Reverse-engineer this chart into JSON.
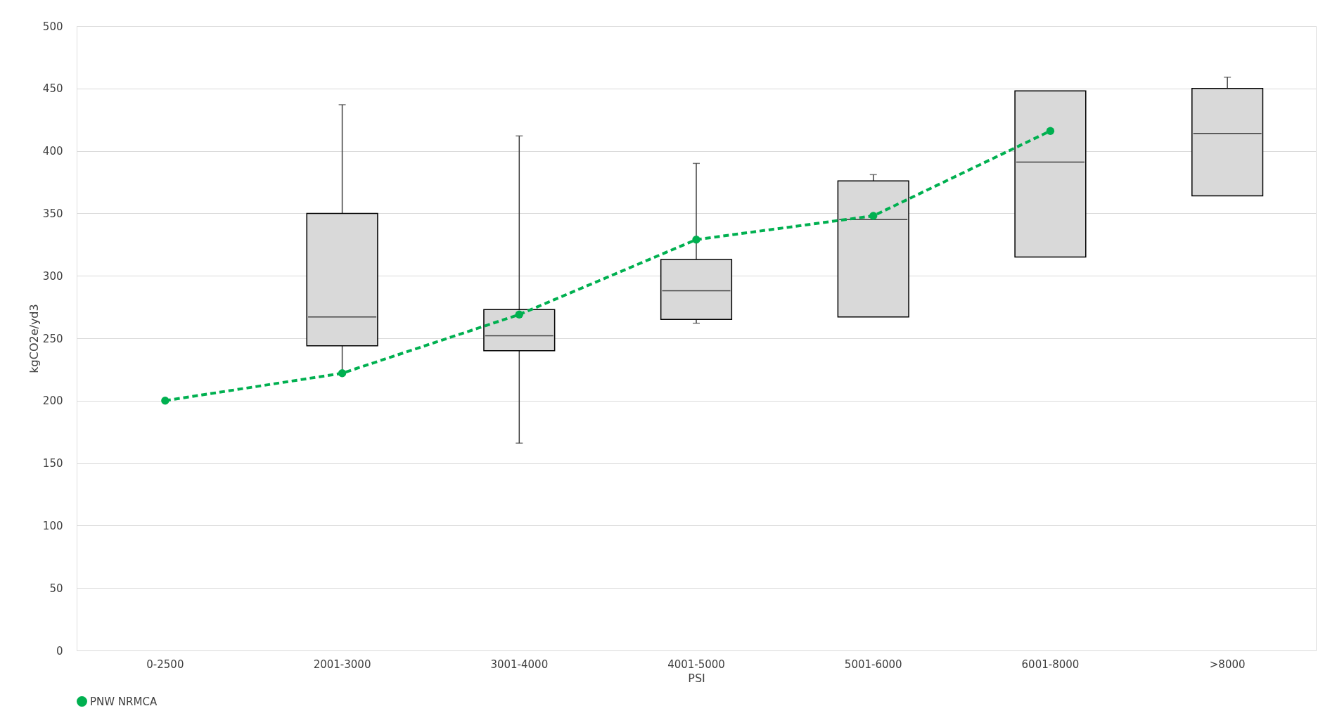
{
  "chart_data": {
    "type": "box",
    "xlabel": "PSI",
    "ylabel": "kgCO2e/yd3",
    "categories": [
      "0-2500",
      "2001-3000",
      "3001-4000",
      "4001-5000",
      "5001-6000",
      "6001-8000",
      ">8000"
    ],
    "series": [
      {
        "type": "box",
        "color": "#d9d9d9",
        "boxes": [
          null,
          {
            "low": 222,
            "q1": 244,
            "median": 267,
            "q3": 350,
            "high": 437
          },
          {
            "low": 166,
            "q1": 240,
            "median": 252,
            "q3": 273,
            "high": 412
          },
          {
            "low": 262,
            "q1": 265,
            "median": 288,
            "q3": 313,
            "high": 390
          },
          {
            "low": 267,
            "q1": 267,
            "median": 345,
            "q3": 376,
            "high": 381
          },
          {
            "low": 315,
            "q1": 315,
            "median": 391,
            "q3": 448,
            "high": 448
          },
          {
            "low": 364,
            "q1": 364,
            "median": 414,
            "q3": 450,
            "high": 459
          }
        ]
      },
      {
        "name": "PNW NRMCA",
        "type": "line",
        "color": "#00b050",
        "marker": "circle",
        "line_style": "dashed",
        "values": [
          200,
          222,
          269,
          329,
          348,
          416,
          null
        ]
      }
    ],
    "ylim": [
      0,
      500
    ],
    "yticks": [
      0,
      50,
      100,
      150,
      200,
      250,
      300,
      350,
      400,
      450,
      500
    ],
    "grid": "y",
    "legend": "bottom"
  }
}
